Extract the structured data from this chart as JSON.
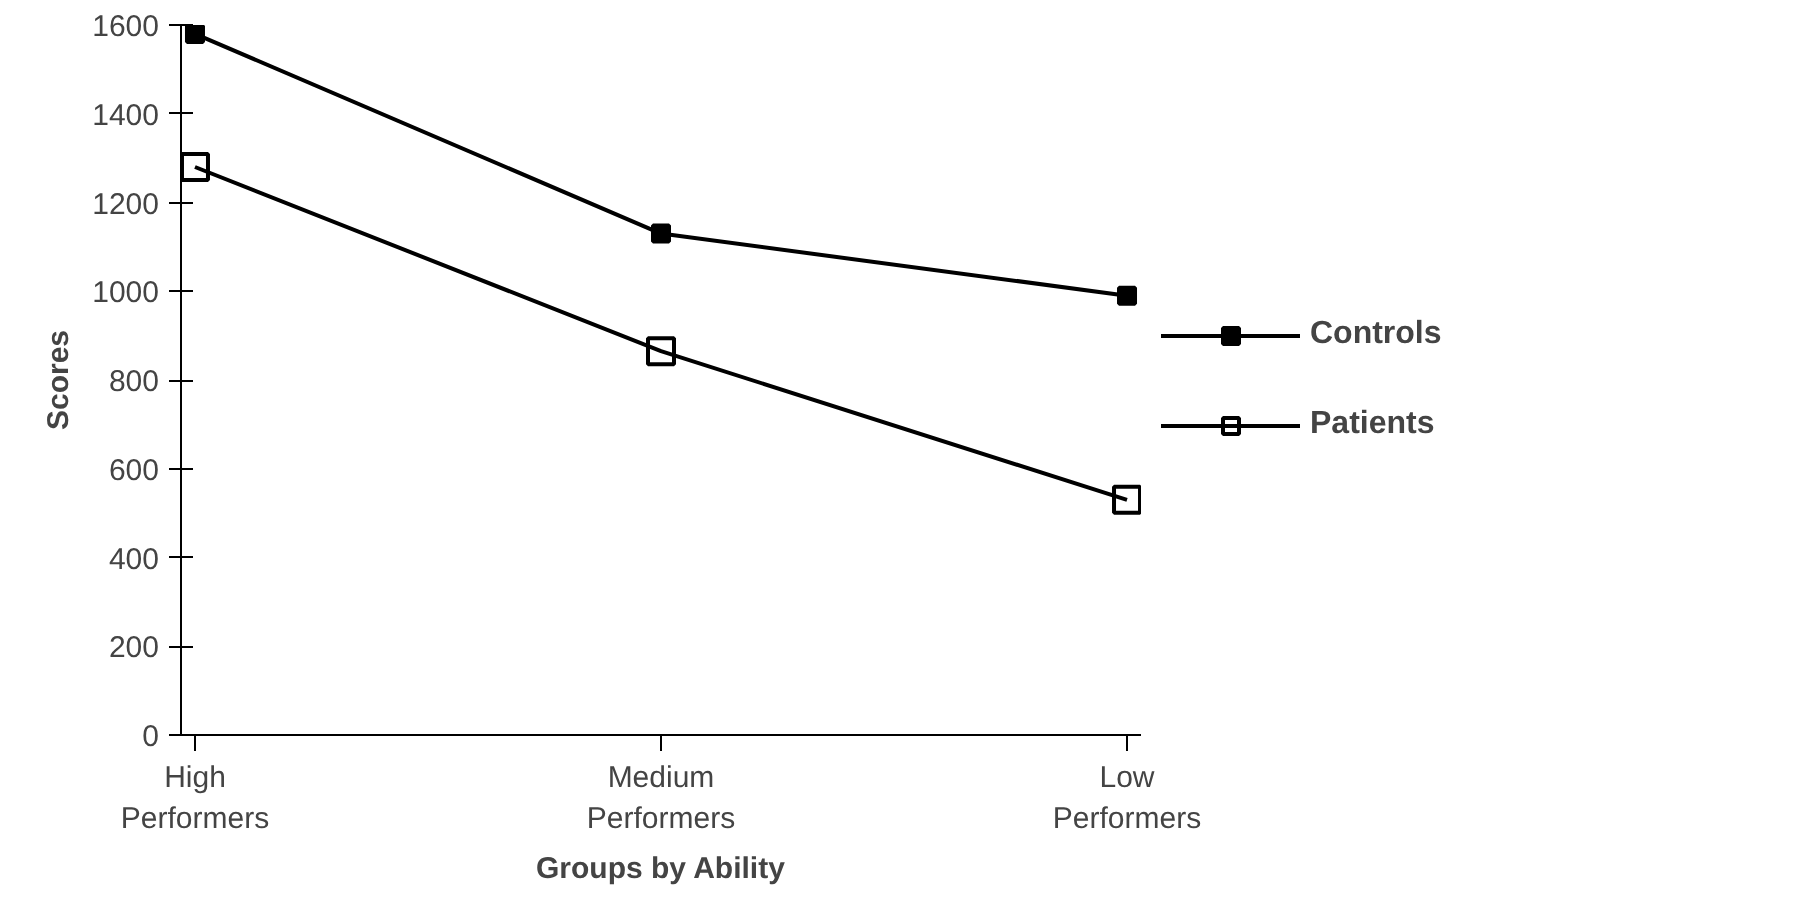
{
  "chart_data": {
    "type": "line",
    "xlabel": "Groups by Ability",
    "ylabel": "Scores",
    "categories": [
      "High Performers",
      "Medium Performers",
      "Low Performers"
    ],
    "series": [
      {
        "name": "Controls",
        "color": "#000000",
        "values": [
          1580,
          1130,
          990
        ]
      },
      {
        "name": "Patients",
        "color": "#000000",
        "values": [
          1280,
          865,
          530
        ]
      }
    ],
    "ylim": [
      0,
      1600
    ],
    "yticks": [
      0,
      200,
      400,
      600,
      800,
      1000,
      1200,
      1400,
      1600
    ],
    "grid": false,
    "legend": "right",
    "marker": "square",
    "line_style": "solid"
  }
}
